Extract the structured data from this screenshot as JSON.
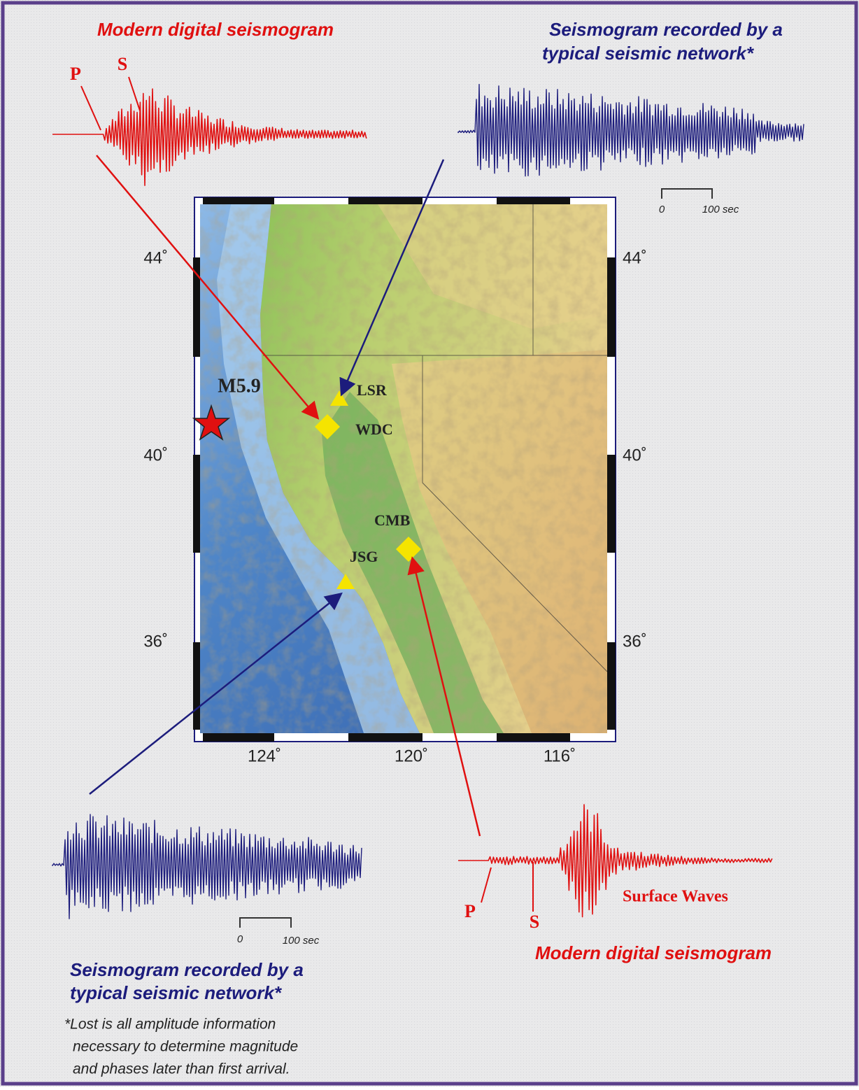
{
  "top_left": {
    "title": "Modern digital seismogram",
    "p": "P",
    "s": "S"
  },
  "top_right": {
    "title": [
      "Seismogram recorded by a",
      "typical seismic network*"
    ],
    "scale": [
      "0",
      "100 sec"
    ]
  },
  "map": {
    "lat_labels": [
      "44˚",
      "40˚",
      "36˚"
    ],
    "lon_labels": [
      "124˚",
      "120˚",
      "116˚"
    ],
    "event": "M5.9",
    "stations": [
      "LSR",
      "WDC",
      "CMB",
      "JSG"
    ]
  },
  "bottom_left": {
    "title": [
      "Seismogram recorded by a",
      "typical seismic network*"
    ],
    "scale": [
      "0",
      "100 sec"
    ],
    "footnote": [
      "*Lost is all amplitude information",
      "necessary to determine magnitude",
      "and phases later than first arrival."
    ]
  },
  "bottom_right": {
    "p": "P",
    "s": "S",
    "label": "Surface Waves",
    "title": "Modern digital seismogram"
  }
}
